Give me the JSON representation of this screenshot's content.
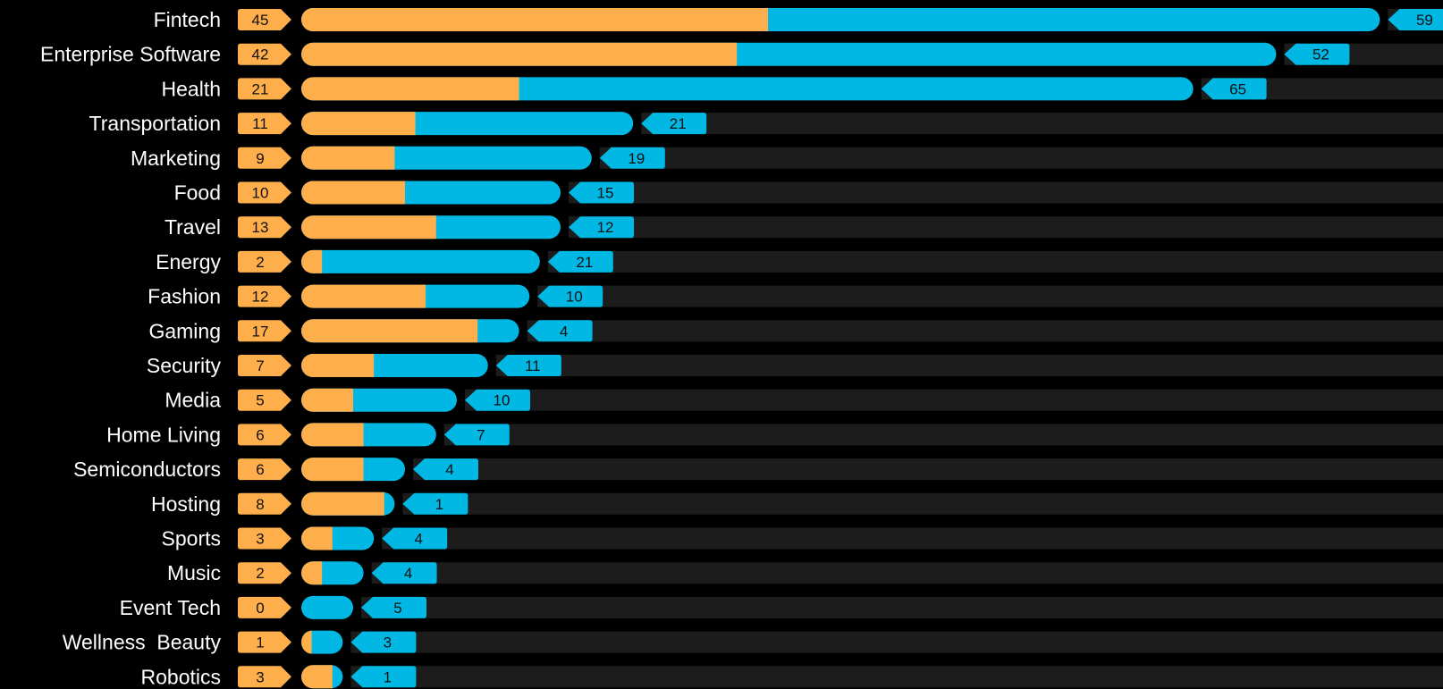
{
  "chart_data": {
    "type": "bar",
    "stacked": true,
    "orientation": "horizontal",
    "colors": {
      "background": "#000000",
      "track": "#1c1c1c",
      "series_a": "#ffae4c",
      "series_b": "#00b8e3",
      "label_text": "#ffffff",
      "value_text": "#111111"
    },
    "categories": [
      "Fintech",
      "Enterprise Software",
      "Health",
      "Transportation",
      "Marketing",
      "Food",
      "Travel",
      "Energy",
      "Fashion",
      "Gaming",
      "Security",
      "Media",
      "Home Living",
      "Semiconductors",
      "Hosting",
      "Sports",
      "Music",
      "Event Tech",
      "Wellness  Beauty",
      "Robotics"
    ],
    "series": [
      {
        "color": "#ffae4c",
        "values": [
          45,
          42,
          21,
          11,
          9,
          10,
          13,
          2,
          12,
          17,
          7,
          5,
          6,
          6,
          8,
          3,
          2,
          0,
          1,
          3
        ]
      },
      {
        "color": "#00b8e3",
        "values": [
          59,
          52,
          65,
          21,
          19,
          15,
          12,
          21,
          10,
          4,
          11,
          10,
          7,
          4,
          1,
          4,
          4,
          5,
          3,
          1
        ]
      }
    ],
    "xlim": [
      0,
      111
    ],
    "legend": "none",
    "grid": false
  }
}
